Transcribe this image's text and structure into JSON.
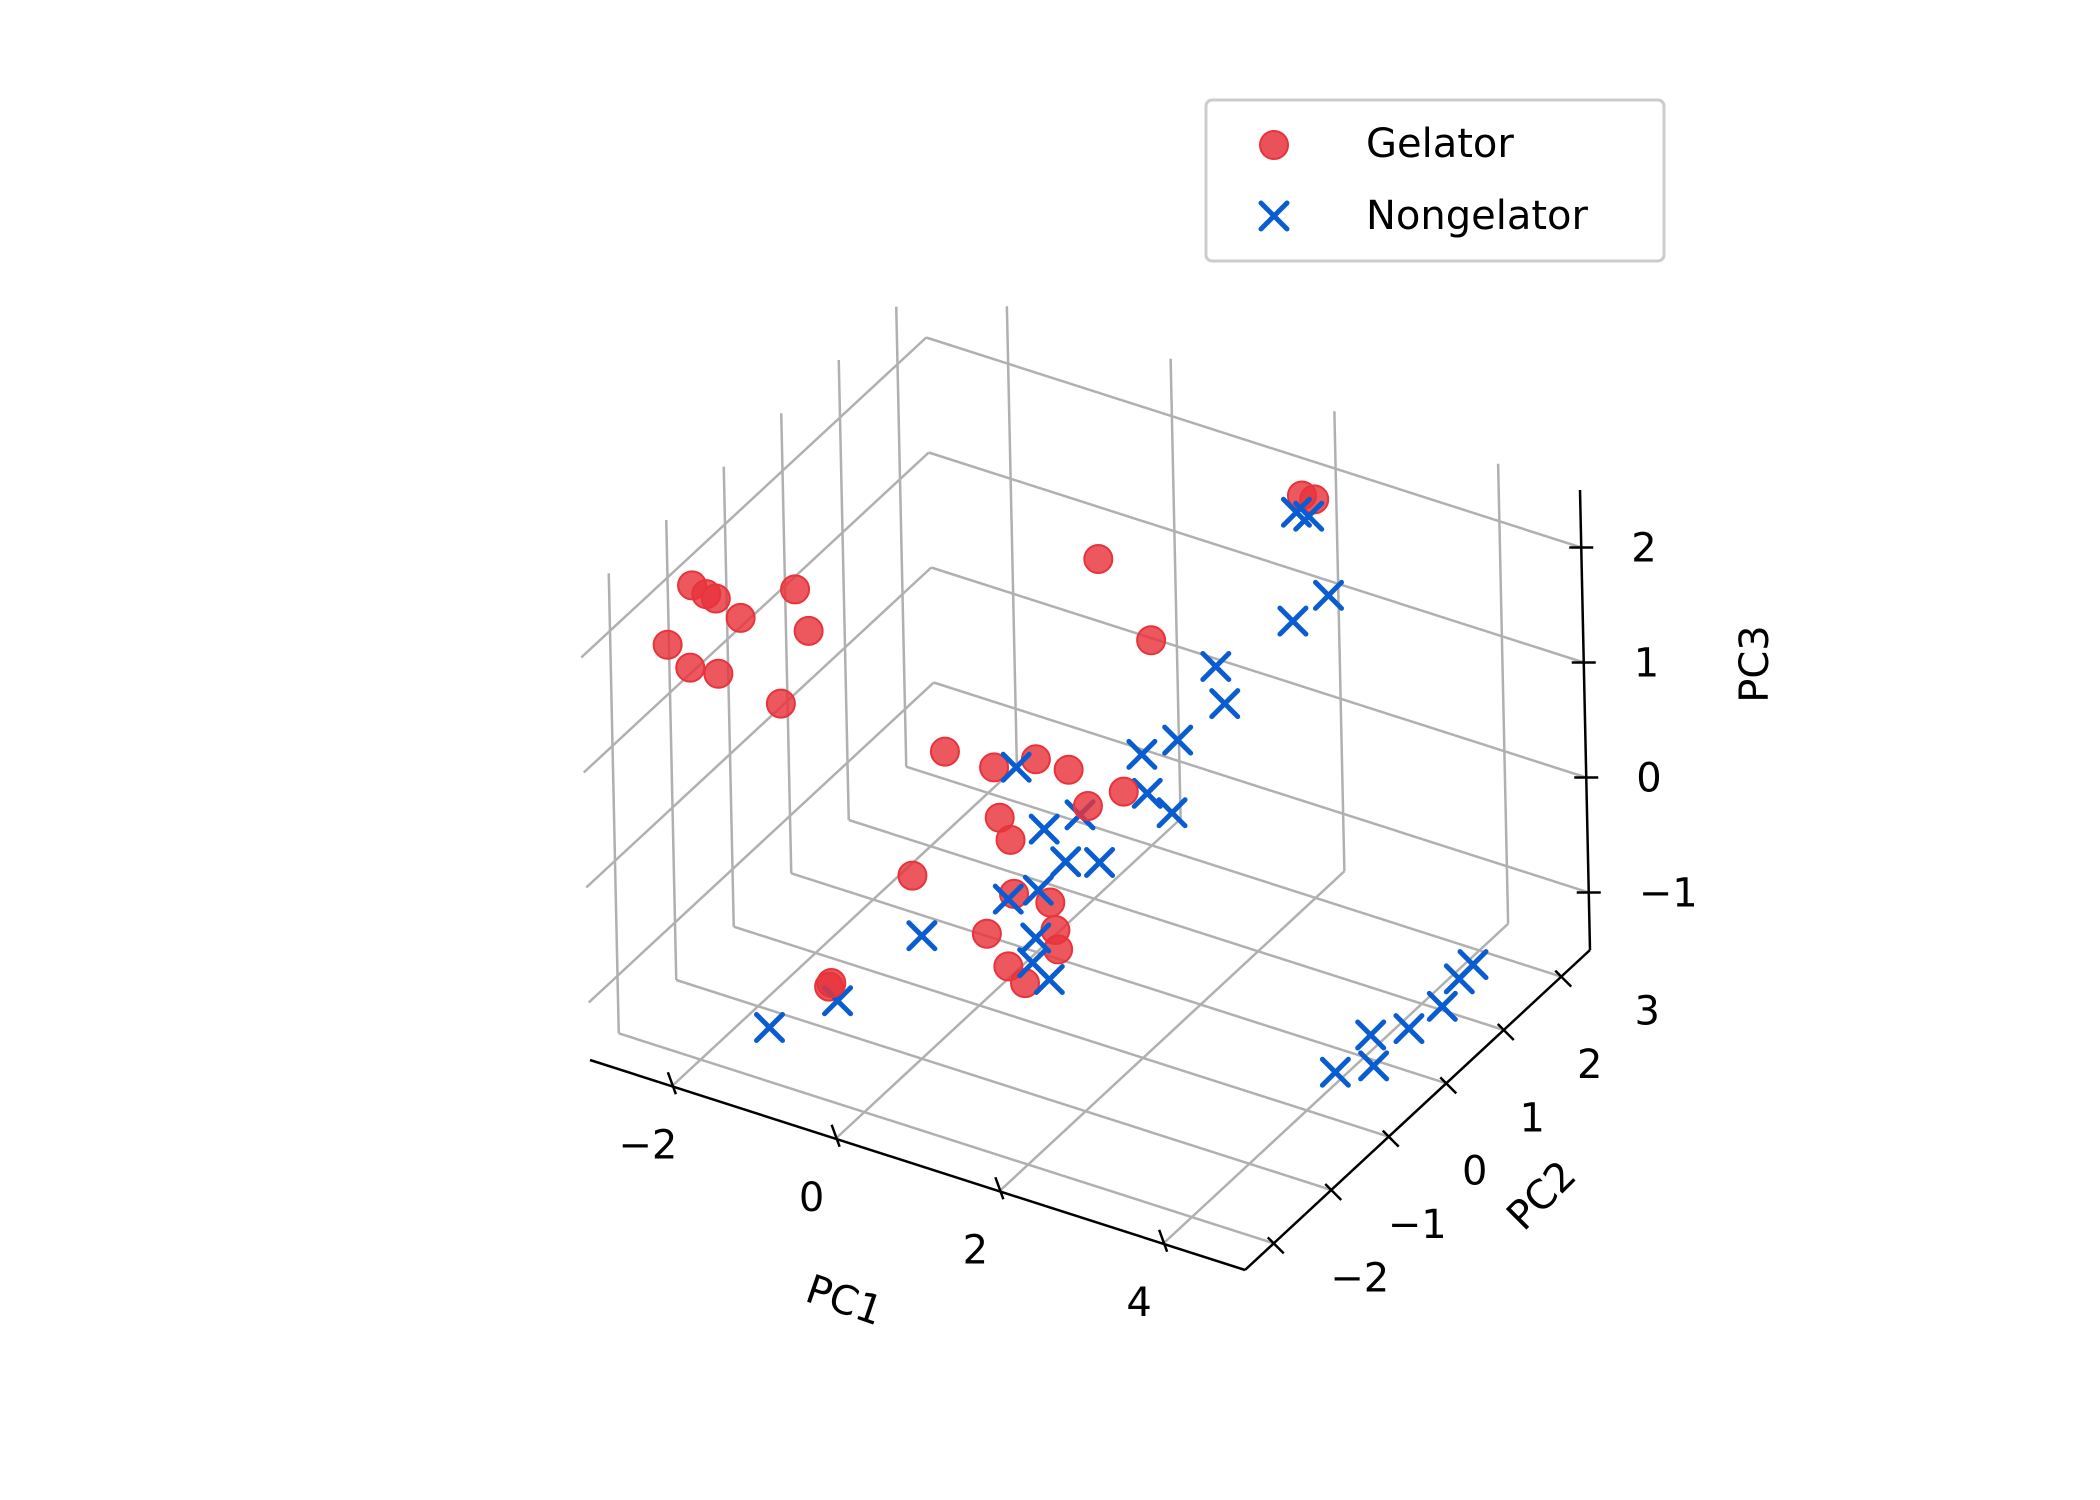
{
  "chart_data": {
    "type": "scatter",
    "projection": "3d",
    "xlabel": "PC1",
    "ylabel": "PC2",
    "zlabel": "PC3",
    "xlim": [
      -3,
      5
    ],
    "ylim": [
      -2.5,
      3.5
    ],
    "zlim": [
      -1.5,
      2.5
    ],
    "x_ticks": [
      "−2",
      "0",
      "2",
      "4"
    ],
    "y_ticks": [
      "−2",
      "−1",
      "0",
      "1",
      "2",
      "3"
    ],
    "z_ticks": [
      "−1",
      "0",
      "1",
      "2"
    ],
    "x_tick_values": [
      -2,
      0,
      2,
      4
    ],
    "y_tick_values": [
      -2,
      -1,
      0,
      1,
      2,
      3
    ],
    "z_tick_values": [
      -1,
      0,
      1,
      2
    ],
    "grid": true,
    "legend_position": "top-right",
    "series": [
      {
        "name": "Gelator",
        "marker": "circle",
        "color": "#e8333b",
        "points": [
          [
            -2.7,
            -1.0,
            2.0
          ],
          [
            -2.6,
            -0.9,
            1.9
          ],
          [
            -2.7,
            -0.6,
            1.7
          ],
          [
            -2.4,
            -0.6,
            1.6
          ],
          [
            -2.3,
            0.2,
            1.5
          ],
          [
            -2.0,
            0.0,
            1.3
          ],
          [
            -2.0,
            -0.5,
            0.9
          ],
          [
            -2.4,
            -1.0,
            1.3
          ],
          [
            -2.8,
            -1.3,
            1.6
          ],
          [
            -2.6,
            -1.2,
            1.4
          ],
          [
            2.3,
            2.5,
            2.3
          ],
          [
            2.45,
            2.5,
            2.3
          ],
          [
            0.5,
            1.5,
            1.8
          ],
          [
            1.2,
            1.4,
            1.3
          ],
          [
            -0.5,
            0.2,
            0.5
          ],
          [
            0.1,
            0.2,
            0.5
          ],
          [
            0.4,
            0.5,
            0.5
          ],
          [
            0.8,
            0.5,
            0.5
          ],
          [
            1.1,
            0.4,
            0.3
          ],
          [
            1.4,
            0.6,
            0.4
          ],
          [
            0.3,
            0.0,
            0.2
          ],
          [
            0.5,
            -0.1,
            0.1
          ],
          [
            0.6,
            -0.2,
            -0.3
          ],
          [
            0.9,
            0.0,
            -0.4
          ],
          [
            1.1,
            -0.2,
            -0.5
          ],
          [
            1.2,
            -0.3,
            -0.6
          ],
          [
            -0.5,
            -0.4,
            -0.3
          ],
          [
            0.4,
            -0.4,
            -0.6
          ],
          [
            0.8,
            -0.6,
            -0.7
          ],
          [
            1.0,
            -0.6,
            -0.8
          ],
          [
            -0.3,
            -2.1,
            -0.4
          ],
          [
            -0.4,
            -2.0,
            -0.5
          ]
        ]
      },
      {
        "name": "Nongelator",
        "marker": "x",
        "color": "#0a5dd0",
        "points": [
          [
            2.3,
            2.4,
            2.2
          ],
          [
            2.45,
            2.4,
            2.2
          ],
          [
            2.6,
            2.5,
            1.5
          ],
          [
            2.3,
            2.3,
            1.3
          ],
          [
            1.7,
            1.8,
            1.0
          ],
          [
            1.8,
            1.8,
            0.7
          ],
          [
            1.5,
            1.4,
            0.5
          ],
          [
            1.2,
            1.2,
            0.4
          ],
          [
            1.4,
            1.0,
            0.2
          ],
          [
            1.7,
            1.0,
            0.1
          ],
          [
            0.3,
            0.3,
            0.5
          ],
          [
            1.0,
            0.4,
            0.2
          ],
          [
            0.7,
            0.2,
            0.1
          ],
          [
            1.1,
            0.0,
            0.0
          ],
          [
            0.9,
            -0.2,
            -0.2
          ],
          [
            1.3,
            0.3,
            -0.1
          ],
          [
            0.6,
            -0.3,
            -0.3
          ],
          [
            1.0,
            -0.4,
            -0.5
          ],
          [
            1.1,
            -0.6,
            -0.6
          ],
          [
            1.3,
            -0.6,
            -0.7
          ],
          [
            -0.4,
            -0.4,
            -0.8
          ],
          [
            -0.3,
            -2.0,
            -0.6
          ],
          [
            -1.0,
            -2.2,
            -0.9
          ],
          [
            4.0,
            0.5,
            -1.4
          ],
          [
            4.4,
            0.6,
            -1.3
          ],
          [
            4.3,
            0.7,
            -1.1
          ],
          [
            4.7,
            0.8,
            -1.0
          ],
          [
            4.9,
            1.1,
            -0.9
          ],
          [
            4.9,
            1.4,
            -0.8
          ],
          [
            5.0,
            1.5,
            -0.7
          ]
        ]
      }
    ]
  }
}
